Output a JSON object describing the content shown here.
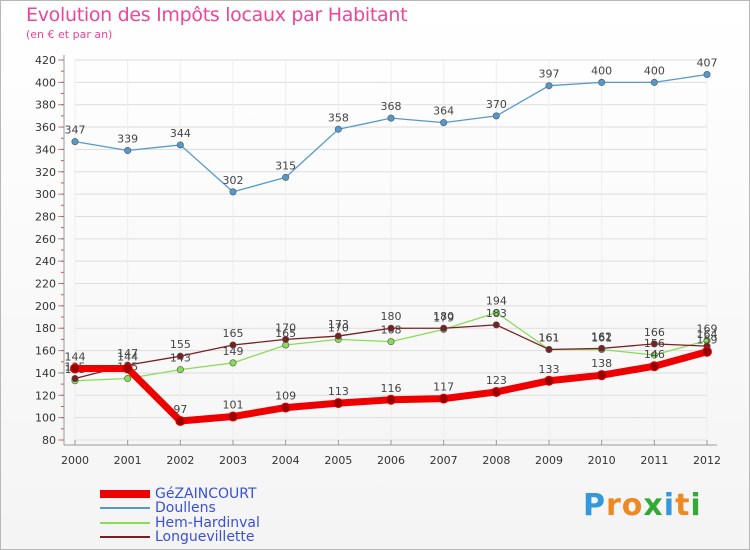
{
  "chart_data": {
    "type": "line",
    "title": "Evolution des Impôts locaux par Habitant",
    "subtitle": "(en € et par an)",
    "xlabel": "",
    "ylabel": "",
    "ylim": [
      80,
      420
    ],
    "yticks": [
      80,
      100,
      120,
      140,
      160,
      180,
      200,
      220,
      240,
      260,
      280,
      300,
      320,
      340,
      360,
      380,
      400,
      420
    ],
    "categories": [
      "2000",
      "2001",
      "2002",
      "2003",
      "2004",
      "2005",
      "2006",
      "2007",
      "2008",
      "2009",
      "2010",
      "2011",
      "2012"
    ],
    "series": [
      {
        "name": "Doullens",
        "color": "#5599cc",
        "values": [
          347,
          339,
          344,
          302,
          315,
          358,
          368,
          364,
          370,
          397,
          400,
          400,
          407
        ]
      },
      {
        "name": "Hem-Hardinval",
        "color": "#88dd55",
        "values": [
          133,
          135,
          143,
          149,
          165,
          170,
          168,
          179,
          194,
          161,
          161,
          156,
          169
        ]
      },
      {
        "name": "Longuevillette",
        "color": "#772222",
        "values": [
          135,
          147,
          155,
          165,
          170,
          173,
          180,
          180,
          183,
          161,
          162,
          166,
          164
        ]
      },
      {
        "name": "GéZAINCOURT",
        "color": "#ee0000",
        "values": [
          144,
          144,
          97,
          101,
          109,
          113,
          116,
          117,
          123,
          133,
          138,
          146,
          159
        ]
      }
    ]
  },
  "legend": {
    "items": [
      {
        "label": "GéZAINCOURT",
        "color": "#ee0000"
      },
      {
        "label": "Doullens",
        "color": "#5599cc"
      },
      {
        "label": "Hem-Hardinval",
        "color": "#88dd55"
      },
      {
        "label": "Longuevillette",
        "color": "#772222"
      }
    ]
  },
  "logo": {
    "letters": [
      "P",
      "r",
      "o",
      "x",
      "i",
      "t",
      "i"
    ],
    "colors": [
      "#3399dd",
      "#ee8822",
      "#ee8822",
      "#33aa33",
      "#3399dd",
      "#ee8822",
      "#33aa33"
    ]
  }
}
